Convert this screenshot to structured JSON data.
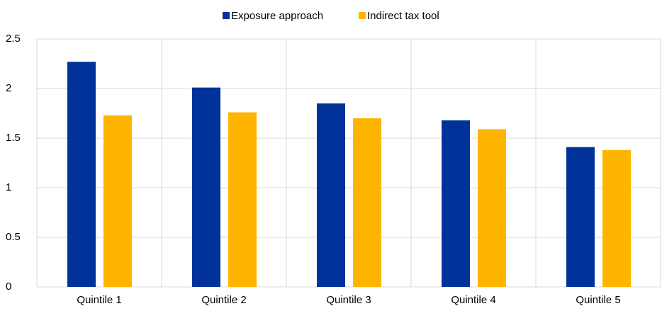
{
  "chart_data": {
    "type": "bar",
    "categories": [
      "Quintile 1",
      "Quintile 2",
      "Quintile 3",
      "Quintile 4",
      "Quintile 5"
    ],
    "series": [
      {
        "name": "Exposure approach",
        "color": "#003299",
        "values": [
          2.27,
          2.01,
          1.85,
          1.68,
          1.41
        ]
      },
      {
        "name": "Indirect tax tool",
        "color": "#ffb400",
        "values": [
          1.73,
          1.76,
          1.7,
          1.59,
          1.38
        ]
      }
    ],
    "ylim": [
      0,
      2.5
    ],
    "yticks": [
      0,
      0.5,
      1,
      1.5,
      2,
      2.5
    ],
    "grid": true,
    "legend": "top"
  }
}
